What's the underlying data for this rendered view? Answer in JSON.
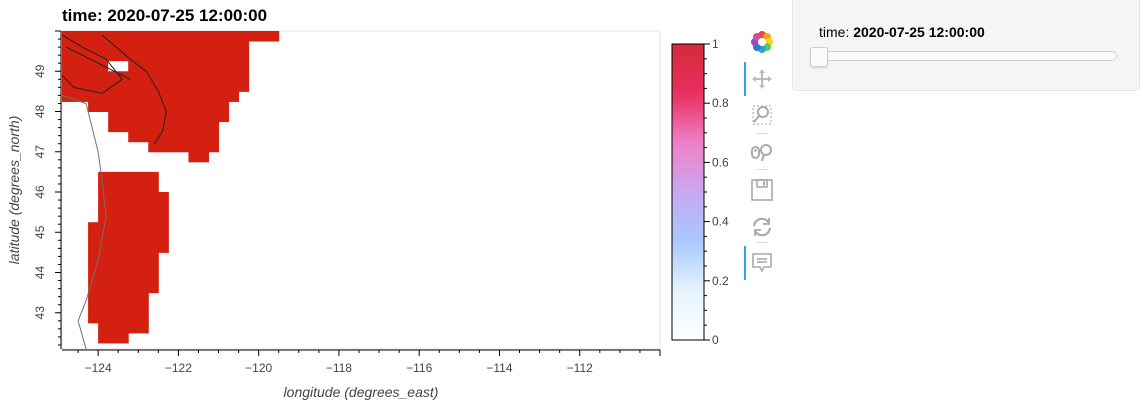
{
  "title_prefix": "time: ",
  "title_value": "2020-07-25 12:00:00",
  "widget": {
    "label": "time: ",
    "value": "2020-07-25 12:00:00",
    "slider_fraction": 0
  },
  "toolbar": {
    "tools": [
      {
        "name": "bokeh-logo-icon",
        "active": false,
        "interactable": false
      },
      {
        "name": "pan-tool-icon",
        "active": true,
        "interactable": true
      },
      {
        "name": "box-zoom-tool-icon",
        "active": false,
        "interactable": true
      },
      {
        "name": "wheel-zoom-tool-icon",
        "active": false,
        "interactable": true
      },
      {
        "name": "save-tool-icon",
        "active": false,
        "interactable": true
      },
      {
        "name": "reset-tool-icon",
        "active": false,
        "interactable": true
      },
      {
        "name": "hover-tool-icon",
        "active": true,
        "interactable": true
      }
    ]
  },
  "chart_data": {
    "type": "heatmap",
    "xlabel": "longitude (degrees_east)",
    "ylabel": "latitude (degrees_north)",
    "xlim": [
      -124.9,
      -110.0
    ],
    "ylim": [
      42.1,
      50.0
    ],
    "xticks": [
      -124,
      -122,
      -120,
      -118,
      -116,
      -114,
      -112
    ],
    "yticks": [
      43,
      44,
      45,
      46,
      47,
      48,
      49
    ],
    "cell_size": 0.25,
    "fill_color": "#d42010",
    "colorbar": {
      "range": [
        0,
        1
      ],
      "ticks": [
        0,
        0.2,
        0.4,
        0.6,
        0.8,
        1
      ],
      "colors": [
        "#ffffff",
        "#e6f4ff",
        "#a8c8ff",
        "#c8a8f0",
        "#f080c8",
        "#e83060",
        "#d42a3a"
      ]
    },
    "cells": [
      {
        "lat": 49.875,
        "lon_start": -124.875,
        "lon_end": -119.625
      },
      {
        "lat": 49.625,
        "lon_start": -124.875,
        "lon_end": -120.375
      },
      {
        "lat": 49.375,
        "lon_start": -124.875,
        "lon_end": -120.375
      },
      {
        "lat": 49.125,
        "lon_start": -124.875,
        "lon_end": -120.375
      },
      {
        "lat": 48.875,
        "lon_start": -124.875,
        "lon_end": -120.375
      },
      {
        "lat": 48.625,
        "lon_start": -124.875,
        "lon_end": -120.375
      },
      {
        "lat": 48.375,
        "lon_start": -124.875,
        "lon_end": -120.625
      },
      {
        "lat": 48.125,
        "lon_start": -124.125,
        "lon_end": -120.875
      },
      {
        "lat": 47.875,
        "lon_start": -123.625,
        "lon_end": -120.875
      },
      {
        "lat": 47.625,
        "lon_start": -123.625,
        "lon_end": -121.125
      },
      {
        "lat": 47.375,
        "lon_start": -123.125,
        "lon_end": -121.125
      },
      {
        "lat": 47.125,
        "lon_start": -122.625,
        "lon_end": -121.125
      },
      {
        "lat": 46.875,
        "lon_start": -121.625,
        "lon_end": -121.375
      },
      {
        "lat": 46.375,
        "lon_start": -123.875,
        "lon_end": -122.625
      },
      {
        "lat": 46.125,
        "lon_start": -123.875,
        "lon_end": -122.625
      },
      {
        "lat": 45.875,
        "lon_start": -123.875,
        "lon_end": -122.375
      },
      {
        "lat": 45.625,
        "lon_start": -123.875,
        "lon_end": -122.375
      },
      {
        "lat": 45.375,
        "lon_start": -123.875,
        "lon_end": -122.375
      },
      {
        "lat": 45.125,
        "lon_start": -124.125,
        "lon_end": -122.375
      },
      {
        "lat": 44.875,
        "lon_start": -124.125,
        "lon_end": -122.375
      },
      {
        "lat": 44.625,
        "lon_start": -124.125,
        "lon_end": -122.375
      },
      {
        "lat": 44.375,
        "lon_start": -124.125,
        "lon_end": -122.625
      },
      {
        "lat": 44.125,
        "lon_start": -124.125,
        "lon_end": -122.625
      },
      {
        "lat": 43.875,
        "lon_start": -124.125,
        "lon_end": -122.625
      },
      {
        "lat": 43.625,
        "lon_start": -124.125,
        "lon_end": -122.625
      },
      {
        "lat": 43.375,
        "lon_start": -124.125,
        "lon_end": -122.875
      },
      {
        "lat": 43.125,
        "lon_start": -124.125,
        "lon_end": -122.875
      },
      {
        "lat": 42.875,
        "lon_start": -124.125,
        "lon_end": -122.875
      },
      {
        "lat": 42.625,
        "lon_start": -123.875,
        "lon_end": -122.875
      },
      {
        "lat": 42.375,
        "lon_start": -123.875,
        "lon_end": -123.375
      }
    ],
    "holes": [
      {
        "lat": 49.125,
        "lon_start": -123.625,
        "lon_end": -123.375
      }
    ],
    "coastlines": [
      {
        "color": "#707070",
        "points": [
          [
            -124.9,
            48.4
          ],
          [
            -124.3,
            48.2
          ],
          [
            -124.2,
            47.8
          ],
          [
            -124.0,
            47.0
          ],
          [
            -123.9,
            46.3
          ],
          [
            -123.8,
            45.4
          ],
          [
            -124.0,
            44.3
          ],
          [
            -124.3,
            43.3
          ],
          [
            -124.5,
            42.8
          ],
          [
            -124.3,
            42.1
          ]
        ]
      },
      {
        "color": "#202020",
        "points": [
          [
            -124.9,
            49.9
          ],
          [
            -124.4,
            49.6
          ],
          [
            -123.8,
            49.3
          ],
          [
            -123.4,
            48.8
          ],
          [
            -123.9,
            48.45
          ],
          [
            -124.6,
            48.6
          ],
          [
            -124.9,
            48.9
          ]
        ]
      },
      {
        "color": "#202020",
        "points": [
          [
            -123.9,
            49.9
          ],
          [
            -123.2,
            49.3
          ],
          [
            -122.8,
            49.0
          ],
          [
            -122.5,
            48.5
          ],
          [
            -122.3,
            48.0
          ],
          [
            -122.4,
            47.5
          ],
          [
            -122.6,
            47.2
          ]
        ]
      },
      {
        "color": "#202020",
        "points": [
          [
            -124.8,
            49.6
          ],
          [
            -124.0,
            49.2
          ],
          [
            -123.2,
            48.8
          ]
        ]
      }
    ]
  }
}
